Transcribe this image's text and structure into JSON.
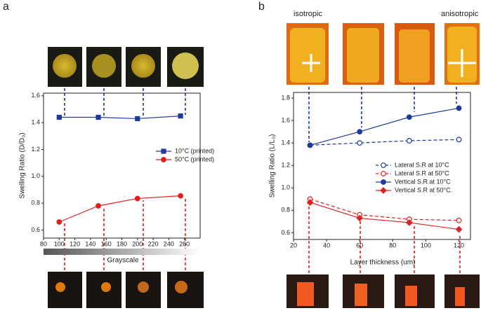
{
  "chart_data": [
    {
      "type": "line",
      "panel": "a",
      "xlabel": "Grayscale",
      "ylabel": "Swelling Ratio (D/D₀)",
      "xlim": [
        80,
        280
      ],
      "ylim": [
        0.54,
        1.62
      ],
      "xticks": [
        80,
        100,
        120,
        140,
        160,
        180,
        200,
        220,
        240,
        260
      ],
      "yticks": [
        0.6,
        0.8,
        {
          "value": 1,
          "label": "1.0"
        },
        1.2,
        1.4,
        1.6
      ],
      "series": [
        {
          "name": "10°C (printed)",
          "color": "#1f3a9a",
          "marker": "square",
          "filled": true,
          "dashed": false,
          "x": [
            100,
            150,
            200,
            255
          ],
          "values": [
            1.44,
            1.44,
            1.43,
            1.45
          ]
        },
        {
          "name": "50°C (printed)",
          "color": "#e02020",
          "marker": "circle",
          "filled": true,
          "dashed": false,
          "x": [
            100,
            150,
            200,
            255
          ],
          "values": [
            0.66,
            0.78,
            0.835,
            0.855
          ]
        }
      ]
    },
    {
      "type": "line",
      "panel": "b",
      "xlabel": "Layer thickness (um)",
      "ylabel": "Swelling Ratio (L/L₀)",
      "annotations": [
        "isotropic",
        "anisotropic"
      ],
      "xlim": [
        20,
        127
      ],
      "ylim": [
        0.54,
        1.85
      ],
      "xticks": [
        20,
        40,
        60,
        80,
        100,
        120
      ],
      "yticks": [
        0.6,
        0.8,
        {
          "value": 1,
          "label": "1.0"
        },
        1.2,
        1.4,
        1.6,
        1.8
      ],
      "series": [
        {
          "name": "Lateral S.R at 10°C",
          "color": "#1f3a9a",
          "marker": "circle",
          "filled": false,
          "dashed": true,
          "x": [
            30,
            60,
            90,
            120
          ],
          "values": [
            1.38,
            1.4,
            1.42,
            1.43
          ]
        },
        {
          "name": "Lateral S.R at 50°C",
          "color": "#e02020",
          "marker": "circle",
          "filled": false,
          "dashed": true,
          "x": [
            30,
            60,
            90,
            120
          ],
          "values": [
            0.9,
            0.76,
            0.72,
            0.71
          ]
        },
        {
          "name": "Vertical S.R at 10°C",
          "color": "#1f3a9a",
          "marker": "circle",
          "filled": true,
          "dashed": false,
          "x": [
            30,
            60,
            90,
            120
          ],
          "values": [
            1.38,
            1.5,
            1.63,
            1.71
          ]
        },
        {
          "name": "Vertical S.R at 50°C.",
          "color": "#e02020",
          "marker": "diamond",
          "filled": true,
          "dashed": false,
          "x": [
            30,
            60,
            90,
            120
          ],
          "values": [
            0.87,
            0.73,
            0.69,
            0.63
          ]
        }
      ]
    }
  ]
}
